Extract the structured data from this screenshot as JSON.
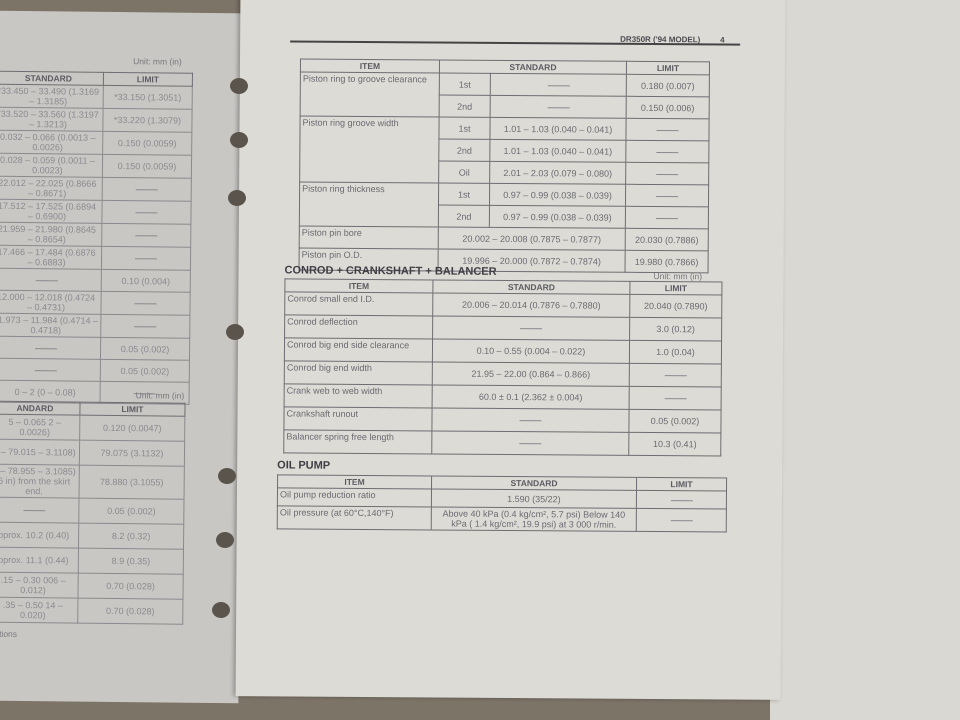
{
  "right_page": {
    "header": "DR350R ('94 MODEL)",
    "page_number": "4",
    "piston_table": {
      "columns": [
        "ITEM",
        "STANDARD",
        "LIMIT"
      ],
      "rows": [
        {
          "item": "Piston ring to groove clearance",
          "sub": "1st",
          "standard": "",
          "limit": "0.180 (0.007)"
        },
        {
          "item": "",
          "sub": "2nd",
          "standard": "",
          "limit": "0.150 (0.006)"
        },
        {
          "item": "Piston ring groove width",
          "sub": "1st",
          "standard": "1.01 – 1.03 (0.040 – 0.041)",
          "limit": ""
        },
        {
          "item": "",
          "sub": "2nd",
          "standard": "1.01 – 1.03 (0.040 – 0.041)",
          "limit": ""
        },
        {
          "item": "",
          "sub": "Oil",
          "standard": "2.01 – 2.03 (0.079 – 0.080)",
          "limit": ""
        },
        {
          "item": "Piston ring thickness",
          "sub": "1st",
          "standard": "0.97 – 0.99 (0.038 – 0.039)",
          "limit": ""
        },
        {
          "item": "",
          "sub": "2nd",
          "standard": "0.97 – 0.99 (0.038 – 0.039)",
          "limit": ""
        },
        {
          "item": "Piston pin bore",
          "sub": "",
          "standard": "20.002 – 20.008 (0.7875 – 0.7877)",
          "limit": "20.030 (0.7886)"
        },
        {
          "item": "Piston pin O.D.",
          "sub": "",
          "standard": "19.996 – 20.000 (0.7872 – 0.7874)",
          "limit": "19.980 (0.7866)"
        }
      ]
    },
    "conrod": {
      "title": "CONROD + CRANKSHAFT + BALANCER",
      "unit": "Unit: mm (in)",
      "columns": [
        "ITEM",
        "STANDARD",
        "LIMIT"
      ],
      "rows": [
        {
          "item": "Conrod small end I.D.",
          "standard": "20.006 – 20.014 (0.7876 – 0.7880)",
          "limit": "20.040 (0.7890)"
        },
        {
          "item": "Conrod deflection",
          "standard": "",
          "limit": "3.0 (0.12)"
        },
        {
          "item": "Conrod big end side clearance",
          "standard": "0.10 – 0.55 (0.004 – 0.022)",
          "limit": "1.0 (0.04)"
        },
        {
          "item": "Conrod big end width",
          "standard": "21.95 – 22.00 (0.864 – 0.866)",
          "limit": ""
        },
        {
          "item": "Crank web to web width",
          "standard": "60.0 ± 0.1 (2.362 ± 0.004)",
          "limit": ""
        },
        {
          "item": "Crankshaft runout",
          "standard": "",
          "limit": "0.05 (0.002)"
        },
        {
          "item": "Balancer spring free length",
          "standard": "",
          "limit": "10.3 (0.41)"
        }
      ]
    },
    "oil_pump": {
      "title": "OIL PUMP",
      "columns": [
        "ITEM",
        "STANDARD",
        "LIMIT"
      ],
      "rows": [
        {
          "item": "Oil pump reduction ratio",
          "standard": "1.590 (35/22)",
          "limit": ""
        },
        {
          "item": "Oil pressure (at 60°C,140°F)",
          "standard": "Above 40 kPa (0.4 kg/cm², 5.7 psi) Below 140 kPa ( 1.4 kg/cm², 19.9 psi) at 3 000 r/min.",
          "limit": ""
        }
      ]
    }
  },
  "left_page": {
    "table1": {
      "unit": "Unit: mm (in)",
      "columns": [
        "STANDARD",
        "LIMIT"
      ],
      "rows": [
        {
          "standard": "*33.450 – 33.490 (1.3169 – 1.3185)",
          "limit": "*33.150 (1.3051)"
        },
        {
          "standard": "*33.520 – 33.560 (1.3197 – 1.3213)",
          "limit": "*33.220 (1.3079)"
        },
        {
          "standard": "0.032 – 0.066 (0.0013 – 0.0026)",
          "limit": "0.150 (0.0059)"
        },
        {
          "standard": "0.028 – 0.059 (0.0011 – 0.0023)",
          "limit": "0.150 (0.0059)"
        },
        {
          "standard": "22.012 – 22.025 (0.8666 – 0.8671)",
          "limit": ""
        },
        {
          "standard": "17.512 – 17.525 (0.6894 – 0.6900)",
          "limit": ""
        },
        {
          "standard": "21.959 – 21.980 (0.8645 – 0.8654)",
          "limit": ""
        },
        {
          "standard": "17.466 – 17.484 (0.6876 – 0.6883)",
          "limit": ""
        },
        {
          "standard": "",
          "limit": "0.10 (0.004)"
        },
        {
          "standard": "12.000 – 12.018 (0.4724 – 0.4731)",
          "limit": ""
        },
        {
          "standard": "11.973 – 11.984 (0.4714 – 0.4718)",
          "limit": ""
        },
        {
          "standard": "",
          "limit": "0.05 (0.002)"
        },
        {
          "standard": "",
          "limit": "0.05 (0.002)"
        },
        {
          "standard": "0 – 2 (0 – 0.08)",
          "limit": ""
        }
      ]
    },
    "table2": {
      "unit": "Unit: mm (in)",
      "columns": [
        "ANDARD",
        "LIMIT"
      ],
      "rows": [
        {
          "standard": "5 – 0.065 2 – 0.0026)",
          "limit": "0.120 (0.0047)"
        },
        {
          "standard": "0 – 79.015 – 3.1108)",
          "limit": "79.075 (3.1132)"
        },
        {
          "standard": "0 – 78.955 – 3.1085) 6 in) from the skirt end.",
          "limit": "78.880 (3.1055)"
        },
        {
          "standard": "",
          "limit": "0.05 (0.002)"
        },
        {
          "standard": "pprox. 10.2 (0.40)",
          "limit": "8.2 (0.32)"
        },
        {
          "standard": "pprox. 11.1 (0.44)",
          "limit": "8.9 (0.35)"
        },
        {
          "standard": ".15 – 0.30 006 – 0.012)",
          "limit": "0.70 (0.028)"
        },
        {
          "standard": ".35 – 0.50 14 – 0.020)",
          "limit": "0.70 (0.028)"
        }
      ]
    },
    "footer": "tions"
  }
}
